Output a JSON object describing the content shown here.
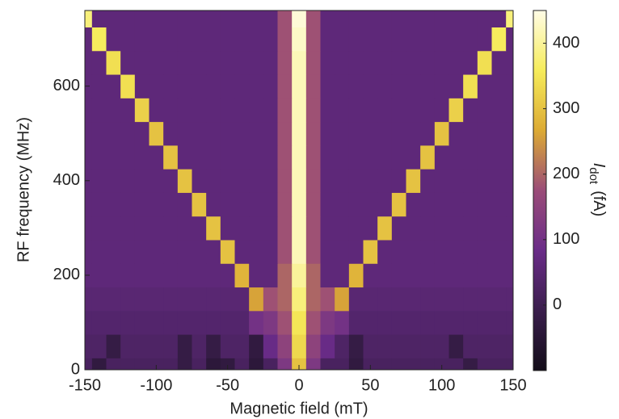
{
  "chart_data": {
    "type": "heatmap",
    "x_label": "Magnetic field (mT)",
    "y_label": "RF frequency (MHz)",
    "colorbar_label": {
      "symbol": "I",
      "subscript": "dot",
      "unit": "(fA)"
    },
    "x": [
      -150,
      -140,
      -130,
      -120,
      -110,
      -100,
      -90,
      -80,
      -70,
      -60,
      -50,
      -40,
      -30,
      -20,
      -10,
      0,
      10,
      20,
      30,
      40,
      50,
      60,
      70,
      80,
      90,
      100,
      110,
      120,
      130,
      140,
      150
    ],
    "y": [
      0,
      50,
      100,
      150,
      200,
      250,
      300,
      350,
      400,
      450,
      500,
      550,
      600,
      650,
      700,
      750
    ],
    "z": [
      [
        20,
        -30,
        20,
        20,
        20,
        20,
        20,
        -20,
        20,
        -40,
        -30,
        20,
        -40,
        20,
        120,
        300,
        120,
        20,
        20,
        -30,
        20,
        20,
        20,
        20,
        20,
        20,
        20,
        -20,
        20,
        20,
        20
      ],
      [
        30,
        30,
        -20,
        30,
        30,
        30,
        30,
        -20,
        30,
        -20,
        30,
        30,
        -30,
        80,
        150,
        330,
        150,
        80,
        30,
        -20,
        30,
        30,
        30,
        30,
        30,
        30,
        -20,
        30,
        30,
        30,
        30
      ],
      [
        40,
        40,
        40,
        40,
        40,
        40,
        40,
        40,
        40,
        40,
        40,
        40,
        100,
        120,
        180,
        350,
        180,
        120,
        100,
        40,
        40,
        40,
        40,
        40,
        40,
        40,
        40,
        40,
        40,
        40,
        40
      ],
      [
        50,
        50,
        50,
        50,
        50,
        50,
        50,
        50,
        50,
        50,
        50,
        50,
        260,
        180,
        200,
        380,
        200,
        180,
        260,
        50,
        50,
        50,
        50,
        50,
        50,
        50,
        50,
        50,
        50,
        50,
        50
      ],
      [
        60,
        60,
        60,
        60,
        60,
        60,
        60,
        60,
        60,
        60,
        60,
        280,
        60,
        60,
        200,
        400,
        200,
        60,
        60,
        280,
        60,
        60,
        60,
        60,
        60,
        60,
        60,
        60,
        60,
        60,
        60
      ],
      [
        60,
        60,
        60,
        60,
        60,
        60,
        60,
        60,
        60,
        60,
        300,
        60,
        60,
        60,
        180,
        420,
        180,
        60,
        60,
        60,
        300,
        60,
        60,
        60,
        60,
        60,
        60,
        60,
        60,
        60,
        60
      ],
      [
        60,
        60,
        60,
        60,
        60,
        60,
        60,
        60,
        60,
        300,
        60,
        60,
        60,
        60,
        180,
        420,
        180,
        60,
        60,
        60,
        60,
        300,
        60,
        60,
        60,
        60,
        60,
        60,
        60,
        60,
        60
      ],
      [
        60,
        60,
        60,
        60,
        60,
        60,
        60,
        60,
        300,
        60,
        60,
        60,
        60,
        60,
        180,
        420,
        180,
        60,
        60,
        60,
        60,
        60,
        300,
        60,
        60,
        60,
        60,
        60,
        60,
        60,
        60
      ],
      [
        60,
        60,
        60,
        60,
        60,
        60,
        60,
        300,
        60,
        60,
        60,
        60,
        60,
        60,
        180,
        420,
        180,
        60,
        60,
        60,
        60,
        60,
        60,
        300,
        60,
        60,
        60,
        60,
        60,
        60,
        60
      ],
      [
        60,
        60,
        60,
        60,
        60,
        60,
        300,
        60,
        60,
        60,
        60,
        60,
        60,
        60,
        180,
        420,
        180,
        60,
        60,
        60,
        60,
        60,
        60,
        60,
        300,
        60,
        60,
        60,
        60,
        60,
        60
      ],
      [
        60,
        60,
        60,
        60,
        60,
        300,
        60,
        60,
        60,
        60,
        60,
        60,
        60,
        60,
        180,
        420,
        180,
        60,
        60,
        60,
        60,
        60,
        60,
        60,
        60,
        300,
        60,
        60,
        60,
        60,
        60
      ],
      [
        60,
        60,
        60,
        60,
        320,
        60,
        60,
        60,
        60,
        60,
        60,
        60,
        60,
        60,
        180,
        420,
        180,
        60,
        60,
        60,
        60,
        60,
        60,
        60,
        60,
        60,
        320,
        60,
        60,
        60,
        60
      ],
      [
        60,
        60,
        60,
        340,
        60,
        60,
        60,
        60,
        60,
        60,
        60,
        60,
        60,
        60,
        180,
        420,
        180,
        60,
        60,
        60,
        60,
        60,
        60,
        60,
        60,
        60,
        60,
        340,
        60,
        60,
        60
      ],
      [
        60,
        60,
        340,
        60,
        60,
        60,
        60,
        60,
        60,
        60,
        60,
        60,
        60,
        60,
        180,
        420,
        180,
        60,
        60,
        60,
        60,
        60,
        60,
        60,
        60,
        60,
        60,
        60,
        340,
        60,
        60
      ],
      [
        60,
        360,
        60,
        60,
        60,
        60,
        60,
        60,
        60,
        60,
        60,
        60,
        60,
        60,
        180,
        430,
        180,
        60,
        60,
        60,
        60,
        60,
        60,
        60,
        60,
        60,
        60,
        60,
        60,
        360,
        60
      ],
      [
        380,
        60,
        60,
        60,
        60,
        60,
        60,
        60,
        60,
        60,
        60,
        60,
        60,
        60,
        180,
        440,
        180,
        60,
        60,
        60,
        60,
        60,
        60,
        60,
        60,
        60,
        60,
        60,
        60,
        60,
        380
      ]
    ],
    "xlim": [
      -150,
      150
    ],
    "xticks": [
      -150,
      -100,
      -50,
      0,
      50,
      100,
      150
    ],
    "ylim": [
      0,
      760
    ],
    "yticks": [
      0,
      200,
      400,
      600
    ],
    "zlim": [
      -100,
      450
    ],
    "zticks": [
      0,
      100,
      200,
      300,
      400
    ],
    "colors": [
      "#120c18",
      "#3a1e4c",
      "#6a2c88",
      "#9a4c78",
      "#dcaa34",
      "#f6ec5a",
      "#fffce6"
    ]
  }
}
